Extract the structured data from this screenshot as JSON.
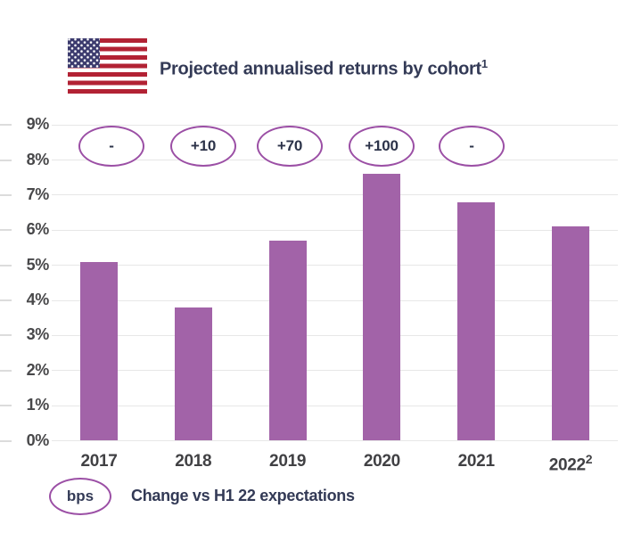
{
  "chart_data": {
    "type": "bar",
    "title": "Projected annualised returns by cohort",
    "title_footnote_marker": "1",
    "categories": [
      "2017",
      "2018",
      "2019",
      "2020",
      "2021",
      "2022"
    ],
    "category_footnote_markers": [
      "",
      "",
      "",
      "",
      "",
      "2"
    ],
    "values": [
      5.1,
      3.8,
      5.7,
      7.6,
      6.8,
      6.1
    ],
    "value_unit": "%",
    "annotations": {
      "unit": "bps",
      "values": [
        "-",
        "+10",
        "+70",
        "+100",
        "-",
        null
      ]
    },
    "yticks": [
      "0%",
      "1%",
      "2%",
      "3%",
      "4%",
      "5%",
      "6%",
      "7%",
      "8%",
      "9%"
    ],
    "ylim": [
      0,
      9
    ],
    "grid": true,
    "legend_position": "bottom",
    "colors": {
      "bar": "#a263a8",
      "annotation_outline": "#9b4fa5",
      "grid": "#e7e7e7",
      "flag_red": "#b22234",
      "flag_blue": "#3c3b6e"
    }
  },
  "legend": {
    "badge": "bps",
    "label": "Change vs H1 22 expectations"
  }
}
